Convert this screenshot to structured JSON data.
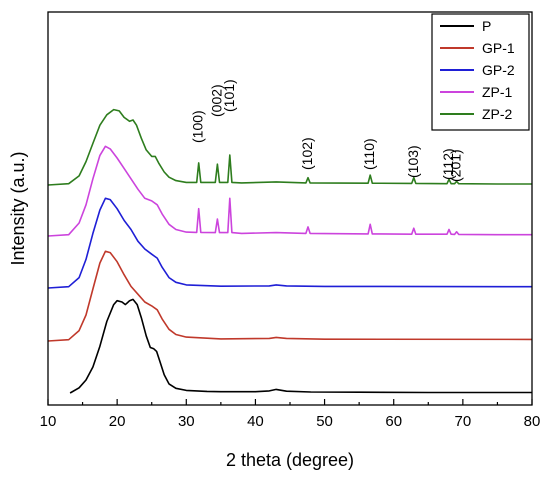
{
  "chart_data": {
    "type": "line",
    "xlabel": "2 theta (degree)",
    "ylabel": "Intensity (a.u.)",
    "xlim": [
      10,
      80
    ],
    "xticks": [
      10,
      20,
      30,
      40,
      50,
      60,
      70,
      80
    ],
    "yticks_labeled": false,
    "grid": false,
    "legend_position": "top-right",
    "series": [
      {
        "name": "P",
        "color": "#000000",
        "points": [
          [
            13.2,
            0.0
          ],
          [
            14.5,
            0.2
          ],
          [
            15.5,
            0.5
          ],
          [
            16.5,
            1.0
          ],
          [
            17.5,
            1.8
          ],
          [
            18.5,
            2.75
          ],
          [
            19.5,
            3.4
          ],
          [
            20.0,
            3.55
          ],
          [
            20.7,
            3.5
          ],
          [
            21.2,
            3.4
          ],
          [
            21.8,
            3.55
          ],
          [
            22.3,
            3.6
          ],
          [
            22.9,
            3.4
          ],
          [
            23.5,
            2.9
          ],
          [
            24.2,
            2.2
          ],
          [
            24.8,
            1.75
          ],
          [
            25.3,
            1.7
          ],
          [
            25.7,
            1.6
          ],
          [
            26.2,
            1.2
          ],
          [
            26.8,
            0.7
          ],
          [
            27.5,
            0.35
          ],
          [
            28.5,
            0.18
          ],
          [
            30.0,
            0.1
          ],
          [
            33.0,
            0.06
          ],
          [
            35.0,
            0.05
          ],
          [
            40.0,
            0.05
          ],
          [
            42.0,
            0.08
          ],
          [
            43.0,
            0.14
          ],
          [
            44.5,
            0.07
          ],
          [
            48.0,
            0.04
          ],
          [
            55.0,
            0.03
          ],
          [
            65.0,
            0.02
          ],
          [
            80.0,
            0.02
          ]
        ]
      },
      {
        "name": "GP-1",
        "color": "#c0392b",
        "points": [
          [
            10.0,
            0.0
          ],
          [
            13.0,
            0.05
          ],
          [
            14.5,
            0.4
          ],
          [
            15.5,
            1.0
          ],
          [
            16.5,
            2.0
          ],
          [
            17.5,
            3.0
          ],
          [
            18.3,
            3.45
          ],
          [
            19.0,
            3.4
          ],
          [
            20.0,
            3.05
          ],
          [
            21.0,
            2.55
          ],
          [
            22.0,
            2.1
          ],
          [
            23.0,
            1.8
          ],
          [
            24.0,
            1.5
          ],
          [
            25.0,
            1.35
          ],
          [
            25.8,
            1.2
          ],
          [
            26.5,
            0.85
          ],
          [
            27.5,
            0.45
          ],
          [
            28.5,
            0.25
          ],
          [
            30.0,
            0.15
          ],
          [
            35.0,
            0.08
          ],
          [
            42.0,
            0.1
          ],
          [
            43.0,
            0.14
          ],
          [
            44.5,
            0.1
          ],
          [
            50.0,
            0.07
          ],
          [
            80.0,
            0.06
          ]
        ]
      },
      {
        "name": "GP-2",
        "color": "#1f1fd6",
        "points": [
          [
            10.0,
            0.0
          ],
          [
            13.0,
            0.05
          ],
          [
            14.5,
            0.4
          ],
          [
            15.5,
            1.1
          ],
          [
            16.5,
            2.1
          ],
          [
            17.5,
            3.0
          ],
          [
            18.3,
            3.45
          ],
          [
            19.0,
            3.4
          ],
          [
            20.0,
            3.05
          ],
          [
            21.0,
            2.6
          ],
          [
            22.0,
            2.25
          ],
          [
            23.0,
            1.8
          ],
          [
            24.0,
            1.5
          ],
          [
            25.0,
            1.3
          ],
          [
            25.8,
            1.15
          ],
          [
            26.5,
            0.8
          ],
          [
            27.5,
            0.4
          ],
          [
            28.5,
            0.22
          ],
          [
            30.0,
            0.12
          ],
          [
            35.0,
            0.07
          ],
          [
            42.0,
            0.08
          ],
          [
            43.0,
            0.12
          ],
          [
            44.5,
            0.08
          ],
          [
            50.0,
            0.06
          ],
          [
            80.0,
            0.05
          ]
        ]
      },
      {
        "name": "ZP-1",
        "color": "#cc44dd",
        "points": [
          [
            10.0,
            0.0
          ],
          [
            13.0,
            0.05
          ],
          [
            14.5,
            0.5
          ],
          [
            15.5,
            1.2
          ],
          [
            16.5,
            2.2
          ],
          [
            17.5,
            3.1
          ],
          [
            18.3,
            3.45
          ],
          [
            19.0,
            3.35
          ],
          [
            20.0,
            3.0
          ],
          [
            21.0,
            2.6
          ],
          [
            22.0,
            2.2
          ],
          [
            23.0,
            1.8
          ],
          [
            24.0,
            1.45
          ],
          [
            25.0,
            1.35
          ],
          [
            25.8,
            1.2
          ],
          [
            26.5,
            0.85
          ],
          [
            27.5,
            0.45
          ],
          [
            28.5,
            0.25
          ],
          [
            30.0,
            0.15
          ],
          [
            31.5,
            0.14
          ],
          [
            31.8,
            1.05
          ],
          [
            32.1,
            0.14
          ],
          [
            34.2,
            0.13
          ],
          [
            34.5,
            0.65
          ],
          [
            34.8,
            0.13
          ],
          [
            36.0,
            0.13
          ],
          [
            36.3,
            1.45
          ],
          [
            36.6,
            0.13
          ],
          [
            38.0,
            0.1
          ],
          [
            43.0,
            0.13
          ],
          [
            47.3,
            0.1
          ],
          [
            47.6,
            0.35
          ],
          [
            47.9,
            0.1
          ],
          [
            56.3,
            0.08
          ],
          [
            56.6,
            0.45
          ],
          [
            56.9,
            0.08
          ],
          [
            62.6,
            0.07
          ],
          [
            62.9,
            0.3
          ],
          [
            63.2,
            0.07
          ],
          [
            67.7,
            0.07
          ],
          [
            68.0,
            0.25
          ],
          [
            68.3,
            0.07
          ],
          [
            68.8,
            0.06
          ],
          [
            69.1,
            0.16
          ],
          [
            69.4,
            0.06
          ],
          [
            75.0,
            0.05
          ],
          [
            80.0,
            0.05
          ]
        ]
      },
      {
        "name": "ZP-2",
        "color": "#2e7d1e",
        "points": [
          [
            10.0,
            0.0
          ],
          [
            13.0,
            0.05
          ],
          [
            14.5,
            0.35
          ],
          [
            15.5,
            0.9
          ],
          [
            16.5,
            1.6
          ],
          [
            17.5,
            2.3
          ],
          [
            18.5,
            2.7
          ],
          [
            19.5,
            2.9
          ],
          [
            20.3,
            2.85
          ],
          [
            21.0,
            2.6
          ],
          [
            21.8,
            2.45
          ],
          [
            22.3,
            2.5
          ],
          [
            22.8,
            2.3
          ],
          [
            23.5,
            1.8
          ],
          [
            24.2,
            1.35
          ],
          [
            25.0,
            1.1
          ],
          [
            25.5,
            1.1
          ],
          [
            26.0,
            0.85
          ],
          [
            26.8,
            0.5
          ],
          [
            27.5,
            0.3
          ],
          [
            28.5,
            0.17
          ],
          [
            30.0,
            0.1
          ],
          [
            31.5,
            0.1
          ],
          [
            31.8,
            0.85
          ],
          [
            32.1,
            0.1
          ],
          [
            34.2,
            0.1
          ],
          [
            34.5,
            0.8
          ],
          [
            34.8,
            0.1
          ],
          [
            36.0,
            0.1
          ],
          [
            36.3,
            1.15
          ],
          [
            36.6,
            0.1
          ],
          [
            38.0,
            0.08
          ],
          [
            43.0,
            0.12
          ],
          [
            47.3,
            0.08
          ],
          [
            47.6,
            0.28
          ],
          [
            47.9,
            0.08
          ],
          [
            56.3,
            0.07
          ],
          [
            56.6,
            0.38
          ],
          [
            56.9,
            0.07
          ],
          [
            62.6,
            0.06
          ],
          [
            62.9,
            0.28
          ],
          [
            63.2,
            0.06
          ],
          [
            67.7,
            0.05
          ],
          [
            68.0,
            0.22
          ],
          [
            68.3,
            0.05
          ],
          [
            68.8,
            0.05
          ],
          [
            69.1,
            0.14
          ],
          [
            69.4,
            0.05
          ],
          [
            75.0,
            0.04
          ],
          [
            80.0,
            0.04
          ]
        ]
      }
    ],
    "annotations": [
      {
        "text": "(100)",
        "x": 31.8
      },
      {
        "text": "(002)",
        "x": 34.5
      },
      {
        "text": "(101)",
        "x": 36.3
      },
      {
        "text": "(102)",
        "x": 47.6
      },
      {
        "text": "(110)",
        "x": 56.6
      },
      {
        "text": "(103)",
        "x": 62.9
      },
      {
        "text": "(112)",
        "x": 68.0
      },
      {
        "text": "(201)",
        "x": 69.1
      }
    ]
  }
}
